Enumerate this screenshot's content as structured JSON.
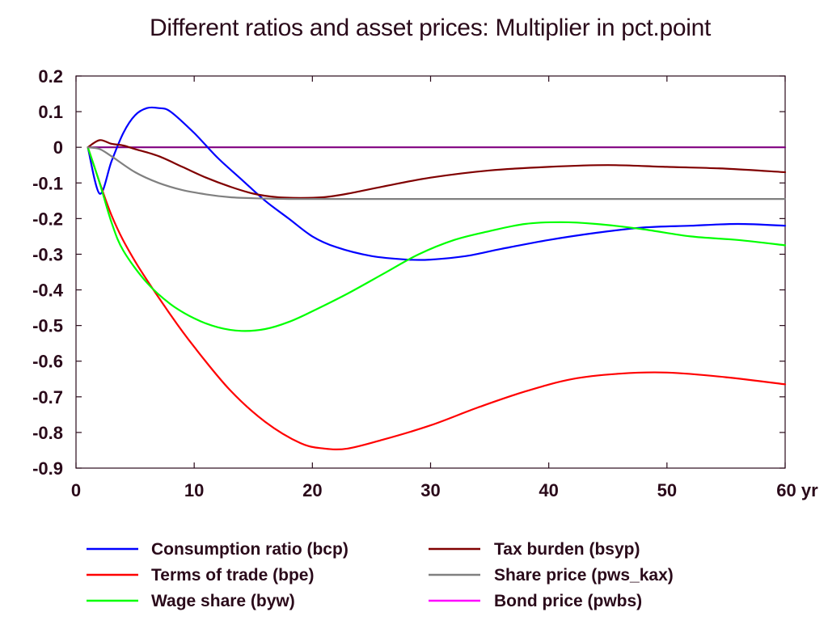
{
  "chart_data": {
    "type": "line",
    "title": "Different ratios and asset prices: Multiplier in pct.point",
    "x_unit_label": "yr",
    "xlim": [
      0,
      60
    ],
    "ylim": [
      -0.9,
      0.2
    ],
    "x_ticks": [
      0,
      10,
      20,
      30,
      40,
      50,
      60
    ],
    "y_ticks": [
      0.2,
      0.1,
      0,
      -0.1,
      -0.2,
      -0.3,
      -0.4,
      -0.5,
      -0.6,
      -0.7,
      -0.8,
      -0.9
    ],
    "y_tick_labels": [
      "0.2",
      "0.1",
      "0",
      "-0.1",
      "-0.2",
      "-0.3",
      "-0.4",
      "-0.5",
      "-0.6",
      "-0.7",
      "-0.8",
      "-0.9"
    ],
    "grid": false,
    "legend_placement": "bottom",
    "series": [
      {
        "name": "Consumption ratio (bcp)",
        "color": "#0000ff",
        "x": [
          1,
          2,
          3,
          4,
          5,
          6,
          7,
          8,
          10,
          12,
          14,
          16,
          18,
          20,
          22,
          25,
          28,
          30,
          33,
          36,
          40,
          44,
          48,
          52,
          56,
          60
        ],
        "y": [
          0,
          -0.13,
          -0.04,
          0.04,
          0.09,
          0.11,
          0.11,
          0.1,
          0.04,
          -0.03,
          -0.09,
          -0.15,
          -0.2,
          -0.25,
          -0.28,
          -0.305,
          -0.315,
          -0.315,
          -0.305,
          -0.285,
          -0.26,
          -0.24,
          -0.225,
          -0.22,
          -0.215,
          -0.22
        ]
      },
      {
        "name": "Terms of trade (bpe)",
        "color": "#ff0000",
        "x": [
          1,
          3,
          5,
          8,
          10,
          13,
          16,
          19,
          21,
          23,
          26,
          30,
          34,
          38,
          42,
          46,
          50,
          55,
          60
        ],
        "y": [
          0,
          -0.19,
          -0.32,
          -0.47,
          -0.56,
          -0.68,
          -0.77,
          -0.83,
          -0.845,
          -0.845,
          -0.82,
          -0.78,
          -0.73,
          -0.685,
          -0.65,
          -0.635,
          -0.632,
          -0.645,
          -0.665
        ]
      },
      {
        "name": "Wage share (byw)",
        "color": "#00ff00",
        "x": [
          1,
          2,
          3,
          4,
          6,
          8,
          10,
          12,
          14,
          16,
          18,
          20,
          23,
          26,
          29,
          32,
          35,
          38,
          41,
          44,
          48,
          52,
          56,
          60
        ],
        "y": [
          0,
          -0.1,
          -0.21,
          -0.29,
          -0.38,
          -0.44,
          -0.48,
          -0.505,
          -0.515,
          -0.51,
          -0.49,
          -0.46,
          -0.41,
          -0.355,
          -0.3,
          -0.26,
          -0.235,
          -0.215,
          -0.21,
          -0.215,
          -0.23,
          -0.25,
          -0.26,
          -0.275
        ]
      },
      {
        "name": "Tax burden (bsyp)",
        "color": "#800000",
        "x": [
          1,
          2,
          3,
          4,
          5,
          7,
          9,
          11,
          13,
          15,
          17,
          19,
          21,
          23,
          26,
          30,
          35,
          40,
          45,
          50,
          55,
          60
        ],
        "y": [
          0,
          0.02,
          0.01,
          0.005,
          -0.005,
          -0.025,
          -0.055,
          -0.085,
          -0.11,
          -0.13,
          -0.14,
          -0.142,
          -0.14,
          -0.13,
          -0.11,
          -0.085,
          -0.065,
          -0.055,
          -0.05,
          -0.055,
          -0.06,
          -0.07
        ]
      },
      {
        "name": "Share price (pws_kax)",
        "color": "#808080",
        "x": [
          1,
          2,
          3,
          5,
          7,
          9,
          11,
          13,
          15,
          18,
          22,
          30,
          40,
          50,
          60
        ],
        "y": [
          0,
          -0.005,
          -0.025,
          -0.07,
          -0.1,
          -0.12,
          -0.132,
          -0.14,
          -0.143,
          -0.145,
          -0.145,
          -0.145,
          -0.145,
          -0.145,
          -0.145
        ]
      },
      {
        "name": "Bond price (pwbs)",
        "color": "#ff00ff",
        "x": [
          1,
          60
        ],
        "y": [
          0,
          0
        ]
      }
    ]
  },
  "zero_line_color": "#800080"
}
